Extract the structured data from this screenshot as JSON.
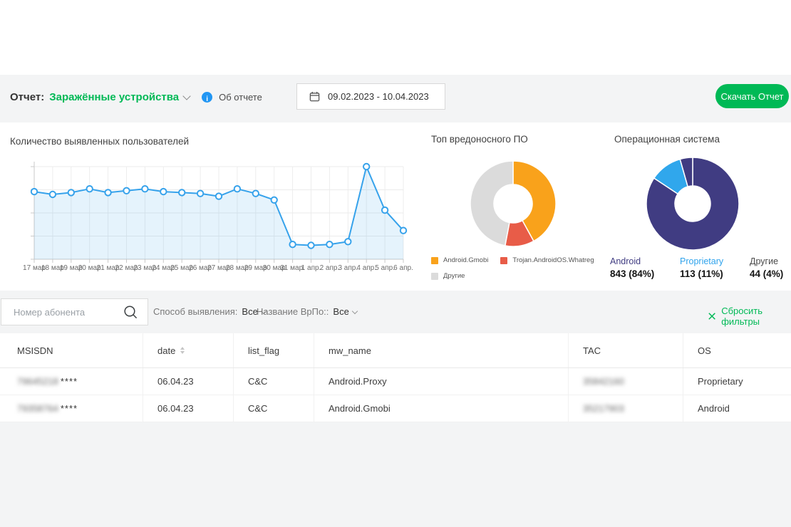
{
  "header": {
    "report_label": "Отчет:",
    "report_name": "Заражённые устройства",
    "about_link": "Об отчете",
    "date_range": "09.02.2023 - 10.04.2023",
    "download_button": "Скачать Отчет"
  },
  "colors": {
    "accent_green": "#00B956",
    "info_blue": "#2196F3",
    "line_blue": "#36A2EB",
    "donut_orange": "#F9A21B",
    "donut_red": "#E85C48",
    "donut_gray": "#DBDBDB",
    "donut_indigo": "#403C82",
    "donut_lightblue": "#30A7EC"
  },
  "icons": {
    "report_selector": "chevron-down",
    "about": "info-circle",
    "date_range": "calendar",
    "search": "magnifier",
    "reset": "x-cross",
    "date_column": "sort-arrows"
  },
  "chart_data": [
    {
      "type": "line",
      "title": "Количество выявленных пользователей",
      "x": [
        "17 мар",
        "18 мар",
        "19 мар",
        "20 мар",
        "21 мар",
        "22 мар",
        "23 мар",
        "24 мар",
        "25 мар",
        "26 мар",
        "27 мар",
        "28 мар",
        "29 мар",
        "30 мар",
        "31 мар.",
        "1 апр.",
        "2 апр.",
        "3 апр.",
        "4 апр.",
        "5 апр.",
        "6 апр."
      ],
      "values": [
        73,
        70,
        72,
        76,
        72,
        74,
        76,
        73,
        72,
        71,
        68,
        76,
        71,
        64,
        16,
        15,
        16,
        19,
        100,
        53,
        31
      ],
      "ylim": [
        0,
        100
      ],
      "y_axis_labels": "none (tick marks only, relative scale)",
      "grid": true,
      "line_color": "#36A2EB",
      "fill_color": "rgba(54,162,235,0.13)",
      "legend_position": "none"
    },
    {
      "type": "donut",
      "title": "Топ вредоносного ПО",
      "slices": [
        {
          "label": "Android.Gmobi",
          "value": 42,
          "color": "#F9A21B"
        },
        {
          "label": "Trojan.AndroidOS.Whatreg",
          "value": 11,
          "color": "#E85C48"
        },
        {
          "label": "Другие",
          "value": 47,
          "color": "#DBDBDB"
        }
      ],
      "values_note": "percent estimated from arc angles, no numeric labels shown",
      "legend_position": "bottom"
    },
    {
      "type": "donut",
      "title": "Операционная система",
      "slices": [
        {
          "label": "Android",
          "value": 843,
          "pct": "84%",
          "display": "843 (84%)",
          "color": "#403C82",
          "label_color": "#403C82"
        },
        {
          "label": "Proprietary",
          "value": 113,
          "pct": "11%",
          "display": "113 (11%)",
          "color": "#30A7EC",
          "label_color": "#2FA3EC"
        },
        {
          "label": "Другие",
          "value": 44,
          "pct": "4%",
          "display": "44 (4%)",
          "color": "#403C82",
          "label_color": "#4a4a4a"
        }
      ],
      "legend_position": "bottom-stats"
    }
  ],
  "filters": {
    "search_placeholder": "Номер абонента",
    "detection_label": "Способ выявления:",
    "detection_value": "Все",
    "malware_label": "Название ВрПо::",
    "malware_value": "Все",
    "reset_label": "Сбросить фильтры"
  },
  "table": {
    "columns": [
      "MSISDN",
      "date",
      "list_flag",
      "mw_name",
      "TAC",
      "OS"
    ],
    "sorted_column": "date",
    "rows": [
      {
        "msisdn_blurred": "79645218",
        "msisdn_suffix": "****",
        "date": "06.04.23",
        "list_flag": "C&C",
        "mw_name": "Android.Proxy",
        "tac_blurred": "35842160",
        "os": "Proprietary"
      },
      {
        "msisdn_blurred": "79358764",
        "msisdn_suffix": "****",
        "date": "06.04.23",
        "list_flag": "C&C",
        "mw_name": "Android.Gmobi",
        "tac_blurred": "35217903",
        "os": "Android"
      }
    ]
  }
}
